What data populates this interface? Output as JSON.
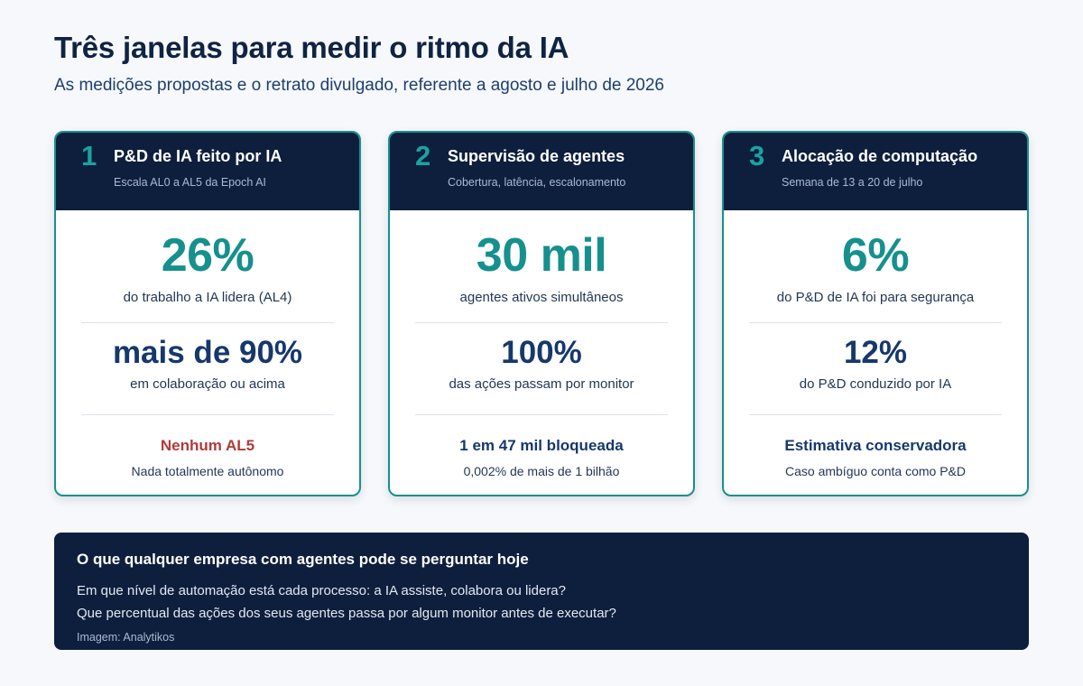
{
  "header": {
    "title": "Três janelas para medir o ritmo da IA",
    "subtitle": "As medições propostas e o retrato divulgado, referente a agosto e julho de 2026"
  },
  "cards": [
    {
      "number": "1",
      "title": "P&D de IA feito por IA",
      "caption": "Escala AL0 a AL5 da Epoch AI",
      "primary": {
        "value": "26%",
        "label": "do trabalho a IA lidera (AL4)"
      },
      "secondary": {
        "value": "mais de 90%",
        "label": "em colaboração ou acima"
      },
      "tertiary": {
        "value": "Nenhum AL5",
        "label": "Nada totalmente autônomo"
      }
    },
    {
      "number": "2",
      "title": "Supervisão de agentes",
      "caption": "Cobertura, latência, escalonamento",
      "primary": {
        "value": "30 mil",
        "label": "agentes ativos simultâneos"
      },
      "secondary": {
        "value": "100%",
        "label": "das ações passam por monitor"
      },
      "tertiary": {
        "value": "1 em 47 mil bloqueada",
        "label": "0,002% de mais de 1 bilhão"
      }
    },
    {
      "number": "3",
      "title": "Alocação de computação",
      "caption": "Semana de 13 a 20 de julho",
      "primary": {
        "value": "6%",
        "label": "do P&D de IA foi para segurança"
      },
      "secondary": {
        "value": "12%",
        "label": "do P&D conduzido por IA"
      },
      "tertiary": {
        "value": "Estimativa conservadora",
        "label": "Caso ambíguo conta como P&D"
      }
    }
  ],
  "footer": {
    "heading": "O que qualquer empresa com agentes pode se perguntar hoje",
    "lines": [
      "Em que nível de automação está cada processo: a IA assiste, colabora ou lidera?",
      "Que percentual das ações dos seus agentes passa por algum monitor antes de executar?"
    ],
    "credit": "Imagem: Analytikos"
  },
  "colors": {
    "accent_teal": "#15908d",
    "navy": "#0e1f3d",
    "alert_red": "#b23a3a",
    "background": "#f6f8fb"
  }
}
